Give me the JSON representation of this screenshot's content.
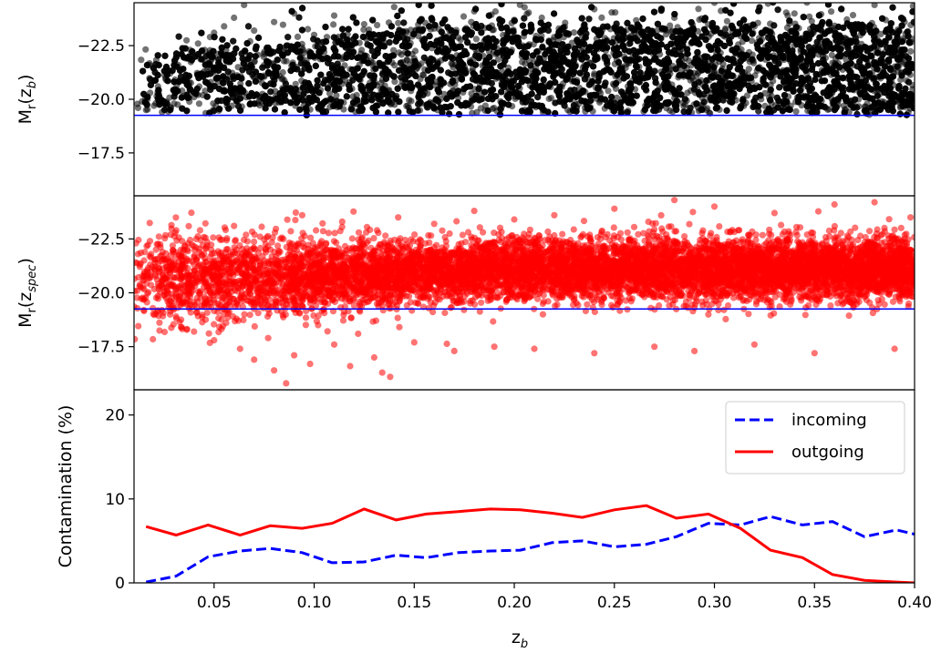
{
  "chart_data": [
    {
      "type": "scatter",
      "panel": "top",
      "ylabel_main": "M",
      "ylabel_sub": "r",
      "ylabel_open": "(z",
      "ylabel_inner_sub": "b",
      "ylabel_close": ")",
      "xlim": [
        0.01,
        0.4
      ],
      "ylim": [
        15.5,
        24.5
      ],
      "y_inverted": true,
      "yticks": [
        22.5,
        20.0,
        17.5
      ],
      "ytick_labels": [
        "−22.5",
        "−20.0",
        "−17.5"
      ],
      "marker_color": "#000000",
      "limit_line": {
        "value": 19.25,
        "color": "#0000ff"
      },
      "series": [
        {
          "points": [
            [
              0.012,
              19.6
            ],
            [
              0.014,
              19.9
            ],
            [
              0.016,
              19.5
            ],
            [
              0.018,
              20.3
            ],
            [
              0.02,
              19.7
            ],
            [
              0.022,
              20.6
            ],
            [
              0.024,
              19.4
            ],
            [
              0.026,
              20.9
            ],
            [
              0.028,
              21.2
            ],
            [
              0.03,
              19.8
            ],
            [
              0.032,
              21.6
            ],
            [
              0.034,
              20.4
            ],
            [
              0.036,
              21.9
            ],
            [
              0.038,
              22.3
            ],
            [
              0.04,
              20.1
            ],
            [
              0.042,
              22.6
            ],
            [
              0.045,
              21.3
            ],
            [
              0.048,
              22.9
            ],
            [
              0.05,
              23.1
            ],
            [
              0.052,
              20.8
            ],
            [
              0.055,
              23.4
            ],
            [
              0.058,
              22.0
            ],
            [
              0.06,
              23.8
            ],
            [
              0.062,
              21.5
            ],
            [
              0.065,
              24.4
            ],
            [
              0.068,
              22.7
            ],
            [
              0.07,
              23.2
            ],
            [
              0.075,
              21.1
            ],
            [
              0.08,
              23.6
            ],
            [
              0.085,
              22.4
            ],
            [
              0.09,
              24.0
            ],
            [
              0.095,
              21.7
            ],
            [
              0.1,
              23.0
            ],
            [
              0.105,
              22.2
            ],
            [
              0.11,
              23.9
            ],
            [
              0.118,
              21.4
            ],
            [
              0.125,
              23.5
            ],
            [
              0.13,
              22.8
            ],
            [
              0.14,
              24.3
            ],
            [
              0.15,
              21.9
            ],
            [
              0.16,
              23.3
            ],
            [
              0.17,
              22.5
            ],
            [
              0.18,
              24.1
            ],
            [
              0.2,
              23.7
            ],
            [
              0.22,
              22.9
            ],
            [
              0.24,
              24.2
            ],
            [
              0.26,
              23.1
            ],
            [
              0.28,
              23.8
            ],
            [
              0.3,
              24.5
            ],
            [
              0.32,
              23.4
            ],
            [
              0.34,
              24.0
            ],
            [
              0.36,
              23.2
            ],
            [
              0.38,
              24.4
            ],
            [
              0.395,
              23.6
            ]
          ]
        }
      ]
    },
    {
      "type": "scatter",
      "panel": "middle",
      "ylabel_main": "M",
      "ylabel_sub": "r",
      "ylabel_open": "(z",
      "ylabel_inner_sub": "spec",
      "ylabel_close": ")",
      "xlim": [
        0.01,
        0.4
      ],
      "ylim": [
        15.5,
        24.5
      ],
      "y_inverted": true,
      "yticks": [
        22.5,
        20.0,
        17.5
      ],
      "ytick_labels": [
        "−22.5",
        "−20.0",
        "−17.5"
      ],
      "marker_color": "#ff0000",
      "limit_line": {
        "value": 19.25,
        "color": "#0000ff"
      },
      "series": [
        {
          "points": [
            [
              0.012,
              21.8
            ],
            [
              0.015,
              21.5
            ],
            [
              0.018,
              20.7
            ],
            [
              0.021,
              22.0
            ],
            [
              0.025,
              19.9
            ],
            [
              0.028,
              21.2
            ],
            [
              0.031,
              18.9
            ],
            [
              0.034,
              22.4
            ],
            [
              0.037,
              20.3
            ],
            [
              0.04,
              18.2
            ],
            [
              0.043,
              22.9
            ],
            [
              0.046,
              19.6
            ],
            [
              0.05,
              17.8
            ],
            [
              0.053,
              21.7
            ],
            [
              0.056,
              18.6
            ],
            [
              0.06,
              23.1
            ],
            [
              0.063,
              17.4
            ],
            [
              0.066,
              20.9
            ],
            [
              0.07,
              16.9
            ],
            [
              0.073,
              22.6
            ],
            [
              0.077,
              17.9
            ],
            [
              0.08,
              16.4
            ],
            [
              0.083,
              21.9
            ],
            [
              0.086,
              15.8
            ],
            [
              0.09,
              17.1
            ],
            [
              0.094,
              23.6
            ],
            [
              0.098,
              16.7
            ],
            [
              0.102,
              18.5
            ],
            [
              0.106,
              22.3
            ],
            [
              0.11,
              17.6
            ],
            [
              0.114,
              23.3
            ],
            [
              0.118,
              16.6
            ],
            [
              0.122,
              18.1
            ],
            [
              0.126,
              22.8
            ],
            [
              0.13,
              17.0
            ],
            [
              0.134,
              16.3
            ],
            [
              0.138,
              16.1
            ],
            [
              0.142,
              23.5
            ],
            [
              0.15,
              17.7
            ],
            [
              0.16,
              23.2
            ],
            [
              0.17,
              17.3
            ],
            [
              0.18,
              23.8
            ],
            [
              0.19,
              17.5
            ],
            [
              0.2,
              23.4
            ],
            [
              0.21,
              17.4
            ],
            [
              0.22,
              23.6
            ],
            [
              0.24,
              17.2
            ],
            [
              0.25,
              23.9
            ],
            [
              0.27,
              17.5
            ],
            [
              0.28,
              24.3
            ],
            [
              0.29,
              17.3
            ],
            [
              0.3,
              24.0
            ],
            [
              0.32,
              17.6
            ],
            [
              0.33,
              23.7
            ],
            [
              0.35,
              17.2
            ],
            [
              0.36,
              24.1
            ],
            [
              0.38,
              24.2
            ],
            [
              0.39,
              17.4
            ],
            [
              0.398,
              23.5
            ]
          ]
        }
      ]
    },
    {
      "type": "line",
      "panel": "bottom",
      "ylabel": "Contamination (%)",
      "xlabel_main": "z",
      "xlabel_sub": "b",
      "xlim": [
        0.01,
        0.4
      ],
      "ylim": [
        0,
        23
      ],
      "yticks": [
        0,
        10,
        20
      ],
      "ytick_labels": [
        "0",
        "10",
        "20"
      ],
      "xticks": [
        0.05,
        0.1,
        0.15,
        0.2,
        0.25,
        0.3,
        0.35,
        0.4
      ],
      "xtick_labels": [
        "0.05",
        "0.10",
        "0.15",
        "0.20",
        "0.25",
        "0.30",
        "0.35",
        "0.40"
      ],
      "legend": "top-right",
      "series": [
        {
          "name": "incoming",
          "color": "#0000ff",
          "style": "dashed",
          "x": [
            0.016,
            0.031,
            0.047,
            0.063,
            0.078,
            0.094,
            0.109,
            0.125,
            0.141,
            0.156,
            0.172,
            0.188,
            0.203,
            0.219,
            0.234,
            0.25,
            0.266,
            0.281,
            0.297,
            0.313,
            0.328,
            0.344,
            0.359,
            0.375,
            0.391,
            0.4
          ],
          "y": [
            0.1,
            0.8,
            3.1,
            3.8,
            4.1,
            3.6,
            2.4,
            2.5,
            3.3,
            3.0,
            3.6,
            3.8,
            3.9,
            4.8,
            5.0,
            4.3,
            4.6,
            5.5,
            7.1,
            6.9,
            7.9,
            6.9,
            7.3,
            5.5,
            6.3,
            5.8
          ]
        },
        {
          "name": "outgoing",
          "color": "#ff0000",
          "style": "solid",
          "x": [
            0.016,
            0.031,
            0.047,
            0.063,
            0.078,
            0.094,
            0.109,
            0.125,
            0.141,
            0.156,
            0.172,
            0.188,
            0.203,
            0.219,
            0.234,
            0.25,
            0.266,
            0.281,
            0.297,
            0.313,
            0.328,
            0.344,
            0.359,
            0.375,
            0.391,
            0.4
          ],
          "y": [
            6.7,
            5.7,
            6.9,
            5.7,
            6.8,
            6.5,
            7.1,
            8.8,
            7.5,
            8.2,
            8.5,
            8.8,
            8.7,
            8.3,
            7.8,
            8.7,
            9.2,
            7.7,
            8.2,
            6.5,
            3.9,
            3.0,
            1.0,
            0.3,
            0.1,
            0.0
          ]
        }
      ]
    }
  ]
}
